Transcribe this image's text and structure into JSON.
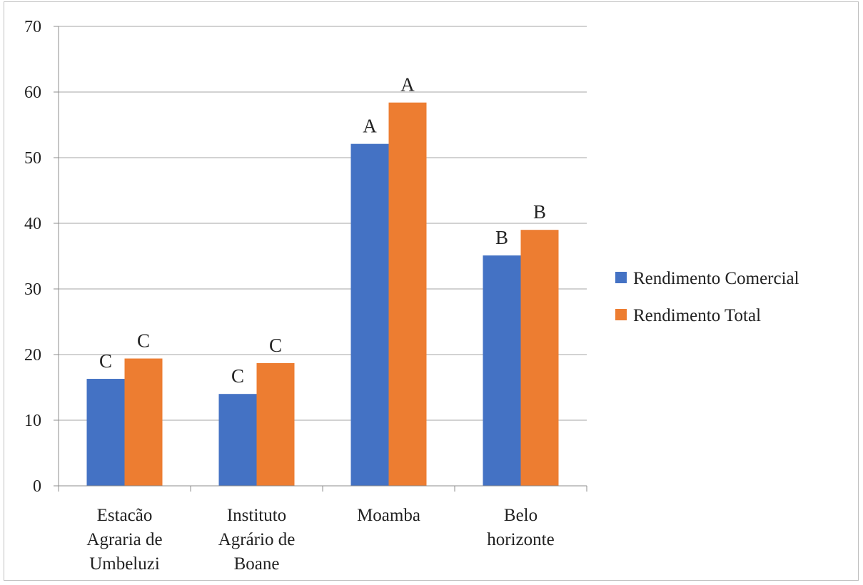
{
  "chart_data": {
    "type": "bar",
    "categories": [
      [
        "Estacão",
        "Agraria de",
        "Umbeluzi"
      ],
      [
        "Instituto",
        "Agrário de",
        "Boane"
      ],
      [
        "Moamba"
      ],
      [
        "Belo",
        "horizonte"
      ]
    ],
    "series": [
      {
        "name": "Rendimento Comercial",
        "color": "#4472c4",
        "values": [
          16.3,
          14.0,
          52.1,
          35.1
        ],
        "labels": [
          "C",
          "C",
          "A",
          "B"
        ]
      },
      {
        "name": "Rendimento Total",
        "color": "#ed7d31",
        "values": [
          19.4,
          18.7,
          58.4,
          39.0
        ],
        "labels": [
          "C",
          "C",
          "A",
          "B"
        ]
      }
    ],
    "ylim": [
      0,
      70
    ],
    "yticks": [
      0,
      10,
      20,
      30,
      40,
      50,
      60,
      70
    ],
    "grid": true,
    "legend_position": "right"
  }
}
